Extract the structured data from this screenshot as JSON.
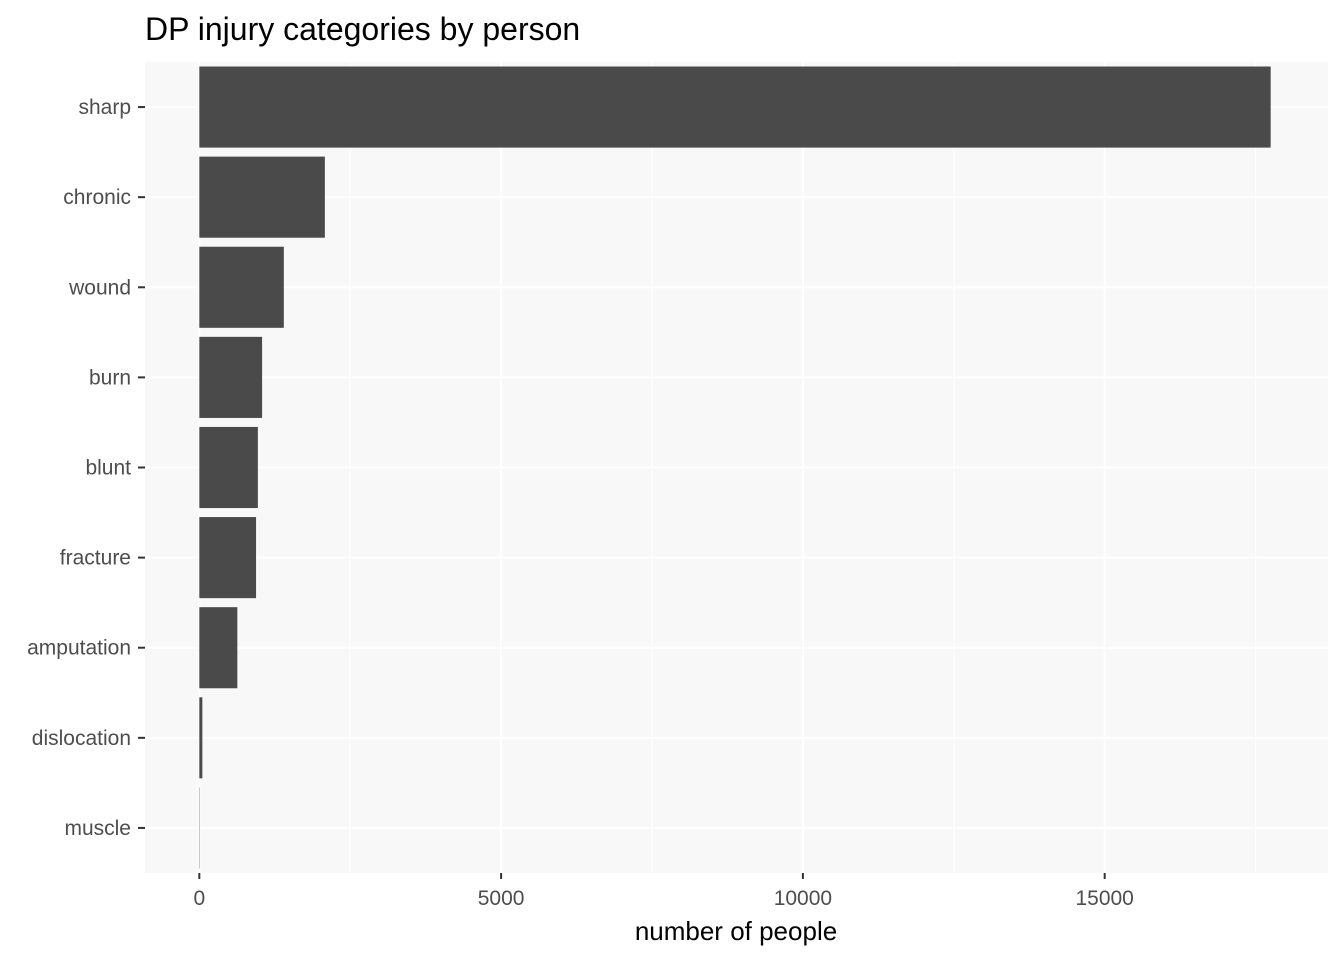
{
  "chart_data": {
    "type": "bar",
    "orientation": "horizontal",
    "title": "DP injury categories by person",
    "xlabel": "number of people",
    "ylabel": "",
    "categories": [
      "sharp",
      "chronic",
      "wound",
      "burn",
      "blunt",
      "fracture",
      "amputation",
      "dislocation",
      "muscle"
    ],
    "values": [
      17750,
      2080,
      1400,
      1040,
      970,
      940,
      630,
      50,
      5
    ],
    "xlim": [
      -900,
      18700
    ],
    "xticks": [
      0,
      5000,
      10000,
      15000
    ],
    "xtick_labels": [
      "0",
      "5000",
      "10000",
      "15000"
    ],
    "grid": true,
    "colors": {
      "bar": "#4a4a4a",
      "panel": "#f8f8f8",
      "grid": "#ffffff"
    }
  }
}
